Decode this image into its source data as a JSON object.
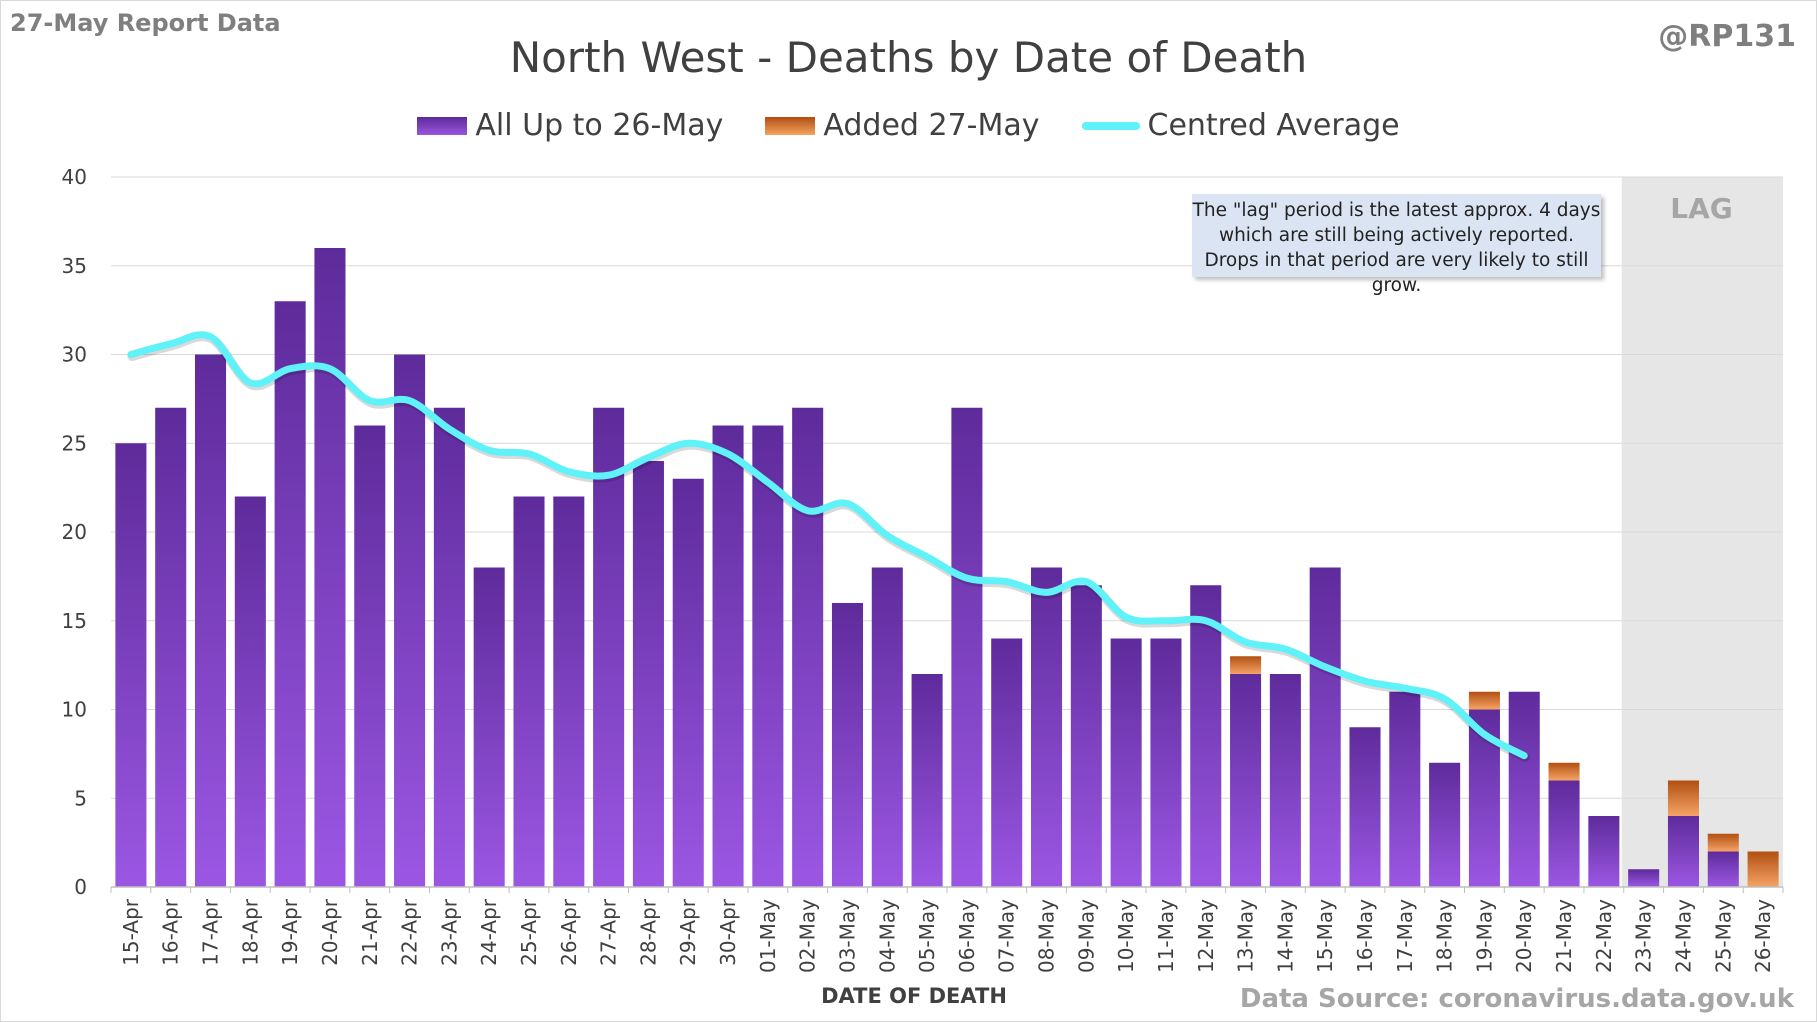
{
  "report_label": "27-May Report Data",
  "handle": "@RP131",
  "source": "Data Source: coronavirus.data.gov.uk",
  "colors": {
    "base": "#7b3fc6",
    "added": "#e07a2e",
    "average": "#5ff2f8",
    "lag_shade": "#e6e6e6"
  },
  "chart_data": {
    "type": "bar",
    "title": "North West - Deaths by Date of Death",
    "xlabel": "DATE OF DEATH",
    "ylabel": "",
    "ylim": [
      0,
      40
    ],
    "yticks": [
      0,
      5,
      10,
      15,
      20,
      25,
      30,
      35,
      40
    ],
    "grid": true,
    "stacked": true,
    "legend_position": "top",
    "categories": [
      "15-Apr",
      "16-Apr",
      "17-Apr",
      "18-Apr",
      "19-Apr",
      "20-Apr",
      "21-Apr",
      "22-Apr",
      "23-Apr",
      "24-Apr",
      "25-Apr",
      "26-Apr",
      "27-Apr",
      "28-Apr",
      "29-Apr",
      "30-Apr",
      "01-May",
      "02-May",
      "03-May",
      "04-May",
      "05-May",
      "06-May",
      "07-May",
      "08-May",
      "09-May",
      "10-May",
      "11-May",
      "12-May",
      "13-May",
      "14-May",
      "15-May",
      "16-May",
      "17-May",
      "18-May",
      "19-May",
      "20-May",
      "21-May",
      "22-May",
      "23-May",
      "24-May",
      "25-May",
      "26-May"
    ],
    "series": [
      {
        "name": "All Up to 26-May",
        "kind": "bar",
        "values": [
          25,
          27,
          30,
          22,
          33,
          36,
          26,
          30,
          27,
          18,
          22,
          22,
          27,
          24,
          23,
          26,
          26,
          27,
          16,
          18,
          12,
          27,
          14,
          18,
          17,
          14,
          14,
          17,
          12,
          12,
          18,
          9,
          11,
          7,
          10,
          11,
          6,
          4,
          1,
          4,
          2,
          0
        ]
      },
      {
        "name": "Added 27-May",
        "kind": "bar",
        "values": [
          0,
          0,
          0,
          0,
          0,
          0,
          0,
          0,
          0,
          0,
          0,
          0,
          0,
          0,
          0,
          0,
          0,
          0,
          0,
          0,
          0,
          0,
          0,
          0,
          0,
          0,
          0,
          0,
          1,
          0,
          0,
          0,
          0,
          0,
          1,
          0,
          1,
          0,
          0,
          2,
          1,
          2
        ]
      },
      {
        "name": "Centred Average",
        "kind": "line",
        "values": [
          30.0,
          30.6,
          31.0,
          28.4,
          29.2,
          29.2,
          27.4,
          27.4,
          25.8,
          24.6,
          24.4,
          23.4,
          23.2,
          24.2,
          25.0,
          24.4,
          22.8,
          21.2,
          21.6,
          19.8,
          18.6,
          17.4,
          17.2,
          16.6,
          17.2,
          15.2,
          15.0,
          15.0,
          13.8,
          13.4,
          12.4,
          11.6,
          11.2,
          10.6,
          8.6,
          7.4,
          null,
          null,
          null,
          null,
          null,
          null
        ]
      }
    ],
    "lag": {
      "label": "LAG",
      "start": "23-May",
      "end": "26-May"
    },
    "annotation": "The \"lag\" period is the latest approx. 4 days which are still being actively reported.  Drops in that period are very likely to still grow."
  }
}
